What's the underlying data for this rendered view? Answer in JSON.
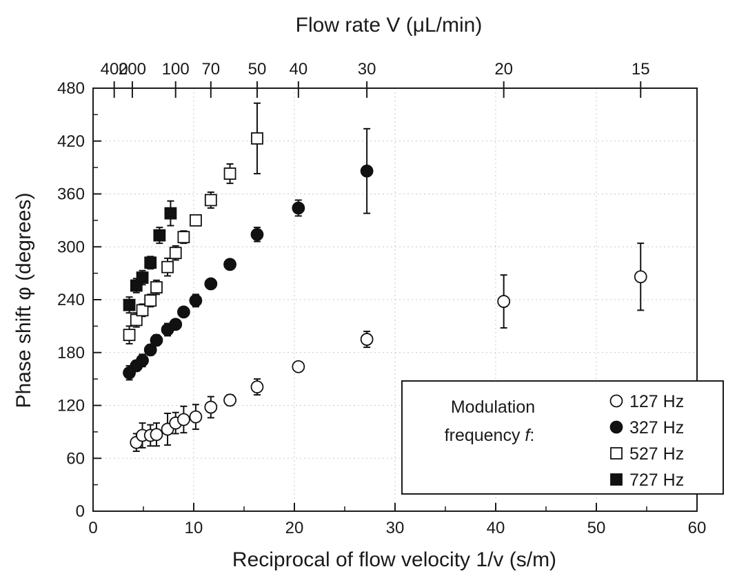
{
  "chart_data": {
    "type": "scatter",
    "xlabel": "Reciprocal of flow velocity 1/v (s/m)",
    "ylabel": "Phase shift φ (degrees)",
    "x2label": "Flow rate V (μL/min)",
    "xlim": [
      0,
      60
    ],
    "ylim": [
      0,
      480
    ],
    "x_ticks": [
      "0",
      "10",
      "20",
      "30",
      "40",
      "50",
      "60"
    ],
    "y_ticks": [
      "0",
      "60",
      "120",
      "180",
      "240",
      "300",
      "360",
      "420",
      "480"
    ],
    "top_axis_ticks": [
      {
        "label": "400",
        "x": 2.1
      },
      {
        "label": "200",
        "x": 3.9
      },
      {
        "label": "100",
        "x": 8.2
      },
      {
        "label": "70",
        "x": 11.7
      },
      {
        "label": "50",
        "x": 16.3
      },
      {
        "label": "40",
        "x": 20.4
      },
      {
        "label": "30",
        "x": 27.2
      },
      {
        "label": "20",
        "x": 40.8
      },
      {
        "label": "15",
        "x": 54.4
      }
    ],
    "grid": true,
    "legend": {
      "title_line1": "Modulation",
      "title_line2": "frequency ",
      "title_var": "f",
      "title_colon": ":",
      "placement": "bottom-right"
    },
    "series": [
      {
        "name": "127 Hz",
        "marker": "circle-open",
        "points": [
          {
            "x": 4.3,
            "y": 78,
            "err": 10
          },
          {
            "x": 4.9,
            "y": 86,
            "err": 14
          },
          {
            "x": 5.7,
            "y": 86,
            "err": 12
          },
          {
            "x": 6.3,
            "y": 87,
            "err": 13
          },
          {
            "x": 7.4,
            "y": 93,
            "err": 18
          },
          {
            "x": 8.2,
            "y": 100,
            "err": 12
          },
          {
            "x": 9.0,
            "y": 104,
            "err": 15
          },
          {
            "x": 10.2,
            "y": 107,
            "err": 14
          },
          {
            "x": 11.7,
            "y": 118,
            "err": 12
          },
          {
            "x": 13.6,
            "y": 126,
            "err": 6
          },
          {
            "x": 16.3,
            "y": 141,
            "err": 9
          },
          {
            "x": 20.4,
            "y": 164,
            "err": 4
          },
          {
            "x": 27.2,
            "y": 195,
            "err": 9
          },
          {
            "x": 40.8,
            "y": 238,
            "err": 30
          },
          {
            "x": 54.4,
            "y": 266,
            "err": 38
          }
        ]
      },
      {
        "name": "327 Hz",
        "marker": "circle-filled",
        "points": [
          {
            "x": 3.6,
            "y": 157,
            "err": 8
          },
          {
            "x": 4.3,
            "y": 165,
            "err": 6
          },
          {
            "x": 4.9,
            "y": 171,
            "err": 7
          },
          {
            "x": 5.7,
            "y": 183,
            "err": 6
          },
          {
            "x": 6.3,
            "y": 194,
            "err": 6
          },
          {
            "x": 7.4,
            "y": 206,
            "err": 7
          },
          {
            "x": 8.2,
            "y": 212,
            "err": 5
          },
          {
            "x": 9.0,
            "y": 226,
            "err": 4
          },
          {
            "x": 10.2,
            "y": 239,
            "err": 7
          },
          {
            "x": 11.7,
            "y": 258,
            "err": 4
          },
          {
            "x": 13.6,
            "y": 280,
            "err": 4
          },
          {
            "x": 16.3,
            "y": 314,
            "err": 8
          },
          {
            "x": 20.4,
            "y": 344,
            "err": 9
          },
          {
            "x": 27.2,
            "y": 386,
            "err": 48
          }
        ]
      },
      {
        "name": "527 Hz",
        "marker": "square-open",
        "points": [
          {
            "x": 3.6,
            "y": 200,
            "err": 10
          },
          {
            "x": 4.3,
            "y": 217,
            "err": 8
          },
          {
            "x": 4.9,
            "y": 228,
            "err": 7
          },
          {
            "x": 5.7,
            "y": 239,
            "err": 7
          },
          {
            "x": 6.3,
            "y": 254,
            "err": 8
          },
          {
            "x": 7.4,
            "y": 277,
            "err": 10
          },
          {
            "x": 8.2,
            "y": 293,
            "err": 8
          },
          {
            "x": 9.0,
            "y": 311,
            "err": 7
          },
          {
            "x": 10.2,
            "y": 330,
            "err": 6
          },
          {
            "x": 11.7,
            "y": 353,
            "err": 9
          },
          {
            "x": 13.6,
            "y": 383,
            "err": 11
          },
          {
            "x": 16.3,
            "y": 423,
            "err": 40
          }
        ]
      },
      {
        "name": "727 Hz",
        "marker": "square-filled",
        "points": [
          {
            "x": 3.6,
            "y": 234,
            "err": 9
          },
          {
            "x": 4.3,
            "y": 256,
            "err": 8
          },
          {
            "x": 4.9,
            "y": 265,
            "err": 8
          },
          {
            "x": 5.7,
            "y": 282,
            "err": 7
          },
          {
            "x": 6.6,
            "y": 313,
            "err": 9
          },
          {
            "x": 7.7,
            "y": 338,
            "err": 14
          }
        ]
      }
    ]
  }
}
